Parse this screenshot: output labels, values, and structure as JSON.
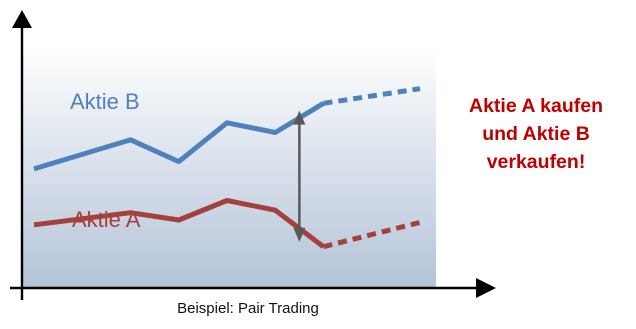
{
  "callout": {
    "text": "Aktie A kaufen\nund Aktie B\nverkaufen!",
    "color": "#c00000"
  },
  "caption": "Beispiel: Pair Trading",
  "colors": {
    "series_b": "#4f81bd",
    "series_a": "#a5403c",
    "arrow": "#595959",
    "axis": "#000000",
    "bg_top": "#ffffff",
    "bg_bottom": "#b3c3d8"
  },
  "chart_data": {
    "type": "line",
    "title": "",
    "xlabel": "",
    "ylabel": "",
    "x": [
      0,
      1,
      2,
      3,
      4,
      5,
      6,
      7,
      8
    ],
    "ylim": [
      0,
      10
    ],
    "grid": false,
    "series": [
      {
        "name": "Aktie B",
        "values": [
          4.9,
          null,
          6.1,
          5.2,
          6.8,
          6.4,
          7.6,
          null,
          null
        ],
        "dashed_values": [
          null,
          null,
          null,
          null,
          null,
          null,
          7.6,
          7.9,
          8.2
        ]
      },
      {
        "name": "Aktie A",
        "values": [
          2.6,
          null,
          3.1,
          2.8,
          3.6,
          3.2,
          1.7,
          null,
          null
        ],
        "dashed_values": [
          null,
          null,
          null,
          null,
          null,
          null,
          1.7,
          2.2,
          2.7
        ]
      }
    ],
    "annotations": [
      {
        "type": "double-arrow",
        "x": 5.5,
        "from": 1.9,
        "to": 7.3
      }
    ]
  }
}
